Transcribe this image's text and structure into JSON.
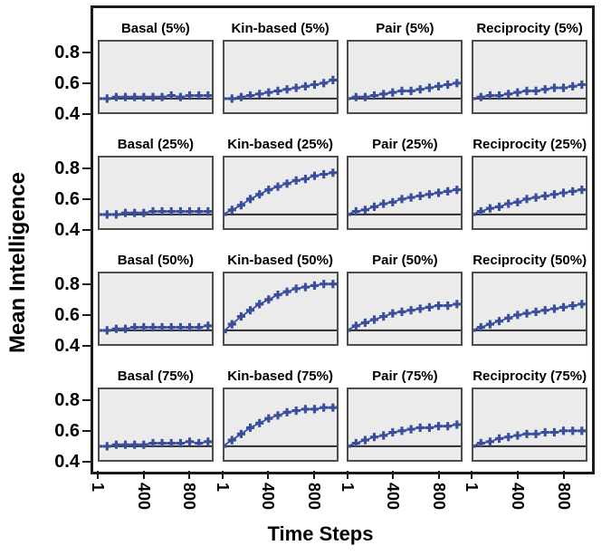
{
  "figure": {
    "marker_color": "#3a4f9c",
    "panel_bg": "#ebebeb",
    "panel_border": "#4d4d4d",
    "frame_border": "#1a1a1a",
    "ref_line_color": "#2b2b2b",
    "text_color": "#000000"
  },
  "chart_data": {
    "type": "line",
    "layout": "4x4_small_multiples",
    "marker": "plus",
    "title": "",
    "ylabel": "Mean Intelligence",
    "xlabel": "Time Steps",
    "legend": "none",
    "grid": "off",
    "x": [
      1,
      81,
      161,
      241,
      321,
      401,
      481,
      561,
      641,
      721,
      801,
      881,
      961
    ],
    "xlim": [
      0,
      1010
    ],
    "ylim": [
      0.4,
      0.88
    ],
    "x_tick_values": [
      1,
      400,
      800
    ],
    "x_tick_labels": [
      "1",
      "400",
      "800"
    ],
    "y_tick_values": [
      0.8,
      0.6,
      0.4
    ],
    "y_tick_labels": [
      "0.8",
      "0.6",
      "0.4"
    ],
    "reference_line_y": 0.5,
    "rows_percent": [
      "5%",
      "25%",
      "50%",
      "75%"
    ],
    "columns_condition": [
      "Basal",
      "Kin-based",
      "Pair",
      "Reciprocity"
    ],
    "panels": [
      {
        "title": "Basal (5%)",
        "condition": "Basal",
        "percent": "5%",
        "values": [
          0.5,
          0.5,
          0.51,
          0.51,
          0.51,
          0.51,
          0.51,
          0.51,
          0.52,
          0.51,
          0.52,
          0.52,
          0.52
        ]
      },
      {
        "title": "Kin-based (5%)",
        "condition": "Kin-based",
        "percent": "5%",
        "values": [
          0.5,
          0.5,
          0.51,
          0.52,
          0.53,
          0.54,
          0.55,
          0.56,
          0.57,
          0.58,
          0.59,
          0.6,
          0.62
        ]
      },
      {
        "title": "Pair (5%)",
        "condition": "Pair",
        "percent": "5%",
        "values": [
          0.5,
          0.51,
          0.51,
          0.52,
          0.53,
          0.54,
          0.55,
          0.55,
          0.56,
          0.57,
          0.58,
          0.59,
          0.6
        ]
      },
      {
        "title": "Reciprocity (5%)",
        "condition": "Reciprocity",
        "percent": "5%",
        "values": [
          0.5,
          0.51,
          0.52,
          0.52,
          0.53,
          0.54,
          0.55,
          0.55,
          0.56,
          0.57,
          0.57,
          0.58,
          0.59
        ]
      },
      {
        "title": "Basal (25%)",
        "condition": "Basal",
        "percent": "25%",
        "values": [
          0.5,
          0.5,
          0.5,
          0.51,
          0.51,
          0.51,
          0.52,
          0.52,
          0.52,
          0.52,
          0.52,
          0.52,
          0.52
        ]
      },
      {
        "title": "Kin-based (25%)",
        "condition": "Kin-based",
        "percent": "25%",
        "values": [
          0.5,
          0.53,
          0.56,
          0.6,
          0.63,
          0.66,
          0.68,
          0.7,
          0.72,
          0.73,
          0.75,
          0.76,
          0.77
        ]
      },
      {
        "title": "Pair (25%)",
        "condition": "Pair",
        "percent": "25%",
        "values": [
          0.5,
          0.52,
          0.53,
          0.55,
          0.57,
          0.58,
          0.6,
          0.61,
          0.62,
          0.63,
          0.64,
          0.65,
          0.66
        ]
      },
      {
        "title": "Reciprocity (25%)",
        "condition": "Reciprocity",
        "percent": "25%",
        "values": [
          0.5,
          0.52,
          0.54,
          0.55,
          0.57,
          0.58,
          0.6,
          0.61,
          0.62,
          0.63,
          0.64,
          0.65,
          0.66
        ]
      },
      {
        "title": "Basal (50%)",
        "condition": "Basal",
        "percent": "50%",
        "values": [
          0.5,
          0.5,
          0.51,
          0.51,
          0.52,
          0.52,
          0.52,
          0.52,
          0.52,
          0.52,
          0.52,
          0.52,
          0.53
        ]
      },
      {
        "title": "Kin-based (50%)",
        "condition": "Kin-based",
        "percent": "50%",
        "values": [
          0.49,
          0.54,
          0.59,
          0.63,
          0.67,
          0.7,
          0.73,
          0.75,
          0.77,
          0.78,
          0.79,
          0.8,
          0.8
        ]
      },
      {
        "title": "Pair (50%)",
        "condition": "Pair",
        "percent": "50%",
        "values": [
          0.5,
          0.53,
          0.55,
          0.57,
          0.59,
          0.61,
          0.62,
          0.63,
          0.64,
          0.65,
          0.66,
          0.66,
          0.67
        ]
      },
      {
        "title": "Reciprocity (50%)",
        "condition": "Reciprocity",
        "percent": "50%",
        "values": [
          0.5,
          0.52,
          0.54,
          0.56,
          0.58,
          0.6,
          0.61,
          0.62,
          0.63,
          0.64,
          0.65,
          0.66,
          0.67
        ]
      },
      {
        "title": "Basal (75%)",
        "condition": "Basal",
        "percent": "75%",
        "values": [
          0.5,
          0.5,
          0.51,
          0.51,
          0.51,
          0.51,
          0.52,
          0.52,
          0.52,
          0.52,
          0.53,
          0.52,
          0.53
        ]
      },
      {
        "title": "Kin-based (75%)",
        "condition": "Kin-based",
        "percent": "75%",
        "values": [
          0.5,
          0.54,
          0.58,
          0.62,
          0.65,
          0.68,
          0.7,
          0.72,
          0.73,
          0.74,
          0.74,
          0.75,
          0.75
        ]
      },
      {
        "title": "Pair (75%)",
        "condition": "Pair",
        "percent": "75%",
        "values": [
          0.5,
          0.52,
          0.54,
          0.56,
          0.57,
          0.59,
          0.6,
          0.61,
          0.62,
          0.62,
          0.63,
          0.63,
          0.64
        ]
      },
      {
        "title": "Reciprocity (75%)",
        "condition": "Reciprocity",
        "percent": "75%",
        "values": [
          0.5,
          0.52,
          0.53,
          0.55,
          0.56,
          0.57,
          0.58,
          0.58,
          0.59,
          0.59,
          0.6,
          0.6,
          0.6
        ]
      }
    ]
  }
}
